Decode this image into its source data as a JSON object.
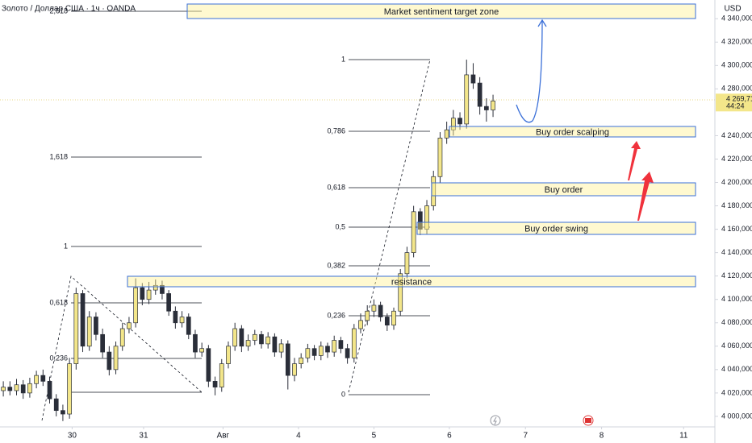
{
  "chart_data": {
    "type": "candlestick",
    "title": "Золото / Доллар США · 1ч · OANDA",
    "y_axis_label": "USD",
    "last_price": {
      "value": 4269.71,
      "label": "4 269,710"
    },
    "countdown": "44:24",
    "up_color": "#f3e68a",
    "down_color": "#2a2e39",
    "xlim": [
      -0.5,
      107.4
    ],
    "xticks": [
      {
        "value": 10.4,
        "label": "30"
      },
      {
        "value": 21.2,
        "label": "31"
      },
      {
        "value": 33.2,
        "label": "Авг"
      },
      {
        "value": 44.6,
        "label": "4"
      },
      {
        "value": 56,
        "label": "5"
      },
      {
        "value": 67.4,
        "label": "6"
      },
      {
        "value": 78.9,
        "label": "7"
      },
      {
        "value": 90.4,
        "label": "8"
      },
      {
        "value": 102.8,
        "label": "11"
      }
    ],
    "ylim": [
      3991,
      4356
    ],
    "yticks": [
      {
        "value": 4000,
        "label": "4 000,000"
      },
      {
        "value": 4020,
        "label": "4 020,000"
      },
      {
        "value": 4040,
        "label": "4 040,000"
      },
      {
        "value": 4060,
        "label": "4 060,000"
      },
      {
        "value": 4080,
        "label": "4 080,000"
      },
      {
        "value": 4100,
        "label": "4 100,000"
      },
      {
        "value": 4120,
        "label": "4 120,000"
      },
      {
        "value": 4140,
        "label": "4 140,000"
      },
      {
        "value": 4160,
        "label": "4 160,000"
      },
      {
        "value": 4180,
        "label": "4 180,000"
      },
      {
        "value": 4200,
        "label": "4 200,000"
      },
      {
        "value": 4220,
        "label": "4 220,000"
      },
      {
        "value": 4240,
        "label": "4 240,000"
      },
      {
        "value": 4280,
        "label": "4 280,000"
      },
      {
        "value": 4300,
        "label": "4 300,000"
      },
      {
        "value": 4320,
        "label": "4 320,000"
      },
      {
        "value": 4340,
        "label": "4 340,000"
      }
    ],
    "open": [
      4022,
      4025,
      4022,
      4027,
      4020,
      4028,
      4035,
      4030,
      4015,
      4005,
      4002,
      4045,
      4105,
      4060,
      4085,
      4070,
      4055,
      4040,
      4060,
      4075,
      4080,
      4110,
      4100,
      4108,
      4112,
      4105,
      4090,
      4080,
      4085,
      4070,
      4055,
      4058,
      4030,
      4025,
      4045,
      4060,
      4075,
      4060,
      4065,
      4070,
      4062,
      4068,
      4055,
      4062,
      4035,
      4045,
      4050,
      4058,
      4052,
      4060,
      4055,
      4065,
      4058,
      4050,
      4075,
      4082,
      4090,
      4095,
      4085,
      4078,
      4090,
      4122,
      4140,
      4175,
      4160,
      4180,
      4205,
      4238,
      4245,
      4255,
      4250,
      4292,
      4285,
      4265,
      4262
    ],
    "high": [
      4030,
      4030,
      4032,
      4031,
      4033,
      4039,
      4040,
      4034,
      4019,
      4010,
      4050,
      4110,
      4108,
      4090,
      4089,
      4075,
      4060,
      4064,
      4080,
      4085,
      4118,
      4114,
      4115,
      4117,
      4116,
      4108,
      4094,
      4090,
      4088,
      4074,
      4063,
      4061,
      4034,
      4049,
      4064,
      4080,
      4078,
      4070,
      4074,
      4073,
      4072,
      4071,
      4066,
      4065,
      4050,
      4054,
      4062,
      4061,
      4064,
      4063,
      4069,
      4068,
      4062,
      4079,
      4088,
      4095,
      4100,
      4098,
      4088,
      4093,
      4126,
      4145,
      4180,
      4178,
      4185,
      4210,
      4243,
      4252,
      4262,
      4260,
      4305,
      4302,
      4290,
      4272,
      4275
    ],
    "low": [
      4017,
      4018,
      4018,
      4015,
      4016,
      4024,
      4026,
      4011,
      4000,
      3996,
      3998,
      4040,
      4055,
      4056,
      4065,
      4050,
      4035,
      4036,
      4056,
      4071,
      4076,
      4095,
      4096,
      4104,
      4100,
      4086,
      4075,
      4076,
      4066,
      4050,
      4051,
      4025,
      4018,
      4021,
      4041,
      4056,
      4055,
      4056,
      4061,
      4058,
      4058,
      4051,
      4050,
      4023,
      4030,
      4041,
      4046,
      4048,
      4048,
      4050,
      4051,
      4054,
      4045,
      4046,
      4071,
      4078,
      4085,
      4081,
      4073,
      4074,
      4086,
      4118,
      4136,
      4155,
      4156,
      4176,
      4200,
      4233,
      4240,
      4245,
      4246,
      4280,
      4258,
      4252,
      4256
    ],
    "close": [
      4025,
      4022,
      4027,
      4020,
      4028,
      4035,
      4030,
      4015,
      4005,
      4002,
      4045,
      4105,
      4060,
      4085,
      4070,
      4055,
      4040,
      4060,
      4075,
      4080,
      4110,
      4100,
      4108,
      4112,
      4105,
      4090,
      4080,
      4085,
      4070,
      4055,
      4058,
      4030,
      4025,
      4045,
      4060,
      4075,
      4060,
      4065,
      4070,
      4062,
      4068,
      4055,
      4062,
      4035,
      4045,
      4050,
      4058,
      4052,
      4060,
      4055,
      4065,
      4058,
      4050,
      4075,
      4082,
      4090,
      4095,
      4085,
      4078,
      4090,
      4122,
      4140,
      4175,
      4160,
      4180,
      4205,
      4238,
      4245,
      4255,
      4250,
      4292,
      4285,
      4265,
      4262,
      4269.71
    ],
    "annotations": {
      "zones": [
        "Market sentiment target zone",
        "Buy order scalping",
        "Buy order",
        "Buy order swing",
        "resistance"
      ],
      "fib_right": [
        "1",
        "0,786",
        "0,618",
        "0,5",
        "0,382",
        "0,236",
        "0"
      ],
      "fib_left": [
        "2,618",
        "1,618",
        "1",
        "0,618",
        "0,236"
      ]
    }
  }
}
